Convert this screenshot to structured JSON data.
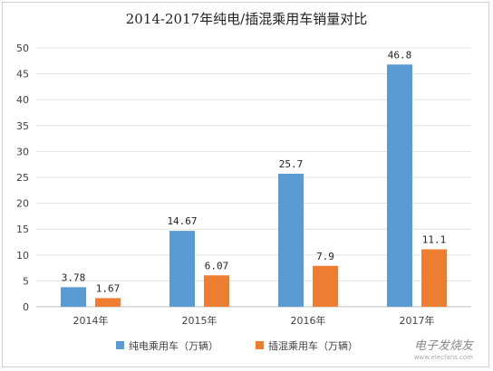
{
  "chart_data": {
    "type": "bar",
    "title": "2014-2017年纯电/插混乘用车销量对比",
    "categories": [
      "2014年",
      "2015年",
      "2016年",
      "2017年"
    ],
    "series": [
      {
        "name": "纯电乘用车（万辆）",
        "values": [
          3.78,
          14.67,
          25.7,
          46.8
        ],
        "labels": [
          "3.78",
          "14.67",
          "25.7",
          "46.8"
        ],
        "color": "#5B9BD5"
      },
      {
        "name": "插混乘用车（万辆）",
        "values": [
          1.67,
          6.07,
          7.9,
          11.1
        ],
        "labels": [
          "1.67",
          "6.07",
          "7.9",
          "11.1"
        ],
        "color": "#ED7D31"
      }
    ],
    "ylim": [
      0,
      50
    ],
    "yticks": [
      "0",
      "5",
      "10",
      "15",
      "20",
      "25",
      "30",
      "35",
      "40",
      "45",
      "50"
    ],
    "grid": true,
    "legend_position": "bottom"
  },
  "watermark": {
    "logo_text": "电子发烧友",
    "url": "www.elecfans.com"
  }
}
